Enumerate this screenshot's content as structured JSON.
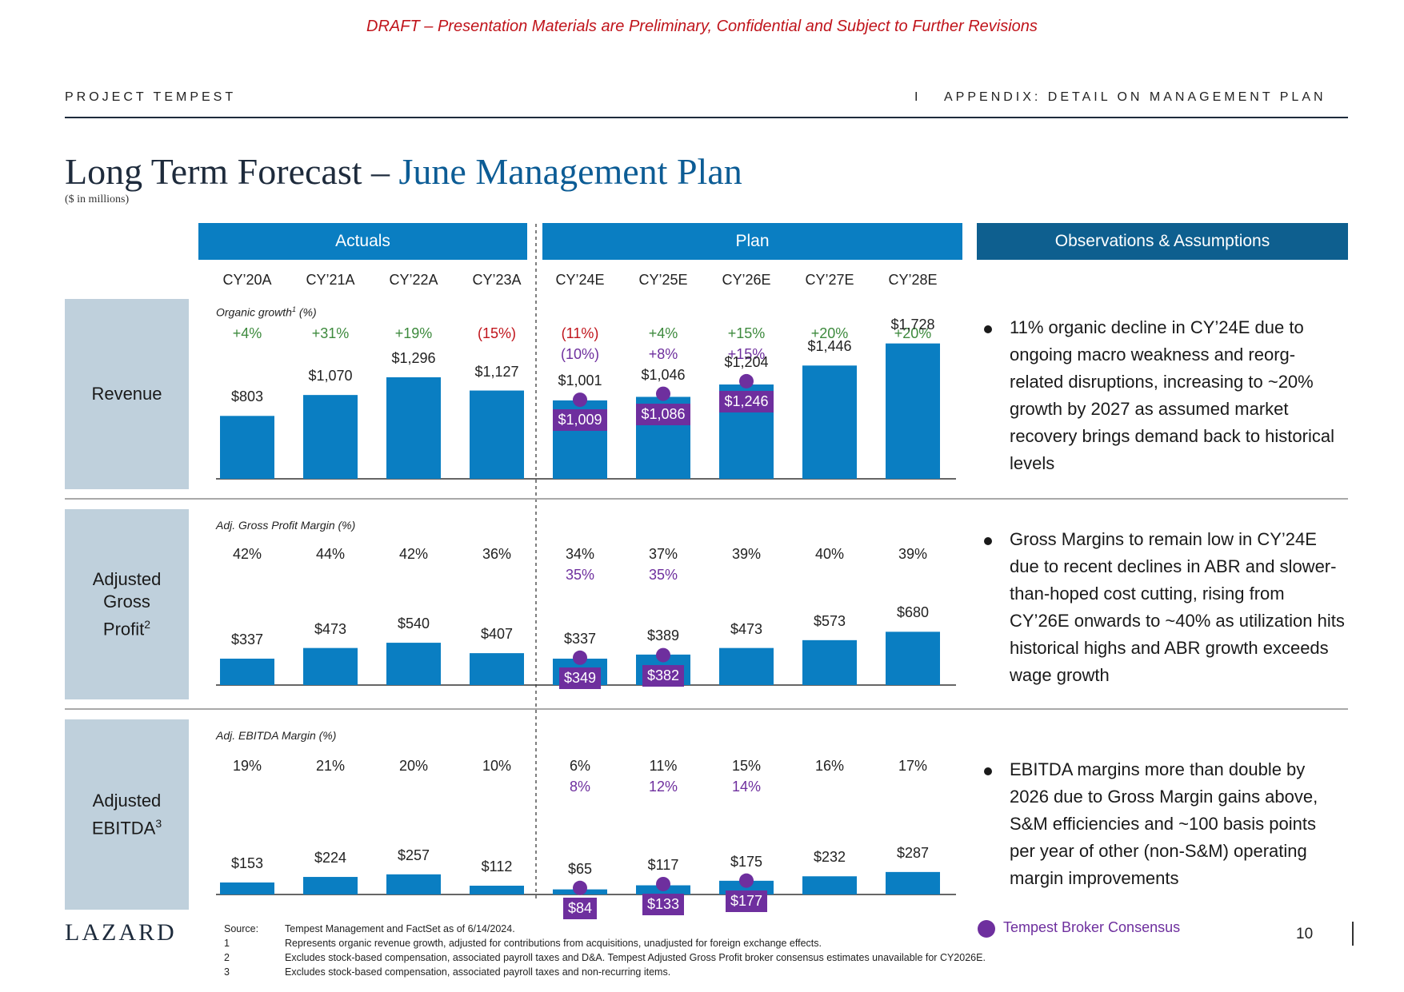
{
  "draft_notice": "DRAFT – Presentation Materials are Preliminary, Confidential and Subject to Further Revisions",
  "header": {
    "left": "PROJECT TEMPEST",
    "divider": "I",
    "right": "APPENDIX: DETAIL ON MANAGEMENT PLAN"
  },
  "title": {
    "main": "Long Term Forecast – ",
    "accent": "June Management Plan",
    "subtitle": "($ in millions)"
  },
  "bands": {
    "actuals": "Actuals",
    "plan": "Plan",
    "observations": "Observations & Assumptions"
  },
  "colors": {
    "bar": "#0a7ec2",
    "band_blue": "#0a7ec2",
    "band_dark": "#0e5f8f",
    "consensus": "#6e2f9e",
    "side_box": "#bfd0dc",
    "green": "#3d8a3d",
    "red": "#c0141b"
  },
  "chart_data": [
    {
      "type": "bar",
      "title": "Revenue",
      "categories": [
        "CY’20A",
        "CY’21A",
        "CY’22A",
        "CY’23A",
        "CY’24E",
        "CY’25E",
        "CY’26E",
        "CY’27E",
        "CY’28E"
      ],
      "values": [
        803,
        1070,
        1296,
        1127,
        1001,
        1046,
        1204,
        1446,
        1728
      ],
      "value_labels": [
        "$803",
        "$1,070",
        "$1,296",
        "$1,127",
        "$1,001",
        "$1,046",
        "$1,204",
        "$1,446",
        "$1,728"
      ],
      "metric_label": "Organic growth",
      "metric_sup": "1",
      "metric_suffix": " (%)",
      "metric": [
        "+4%",
        "+31%",
        "+19%",
        "(15%)",
        "(11%)",
        "+4%",
        "+15%",
        "+20%",
        "+20%"
      ],
      "metric_colors": [
        "green",
        "green",
        "green",
        "red",
        "red",
        "green",
        "green",
        "green",
        "green"
      ],
      "consensus_metric": [
        null,
        null,
        null,
        null,
        "(10%)",
        "+8%",
        "+15%",
        null,
        null
      ],
      "consensus_name": "Tempest Broker Consensus",
      "consensus": [
        null,
        null,
        null,
        null,
        1009,
        1086,
        1246,
        null,
        null
      ],
      "consensus_labels": [
        null,
        null,
        null,
        null,
        "$1,009",
        "$1,086",
        "$1,246",
        null,
        null
      ]
    },
    {
      "type": "bar",
      "title": "Adjusted Gross Profit",
      "categories": [
        "CY’20A",
        "CY’21A",
        "CY’22A",
        "CY’23A",
        "CY’24E",
        "CY’25E",
        "CY’26E",
        "CY’27E",
        "CY’28E"
      ],
      "values": [
        337,
        473,
        540,
        407,
        337,
        389,
        473,
        573,
        680
      ],
      "value_labels": [
        "$337",
        "$473",
        "$540",
        "$407",
        "$337",
        "$389",
        "$473",
        "$573",
        "$680"
      ],
      "metric_label": "Adj. Gross Profit Margin (%)",
      "metric": [
        "42%",
        "44%",
        "42%",
        "36%",
        "34%",
        "37%",
        "39%",
        "40%",
        "39%"
      ],
      "consensus_metric": [
        null,
        null,
        null,
        null,
        "35%",
        "35%",
        null,
        null,
        null
      ],
      "consensus_name": "Tempest Broker Consensus",
      "consensus": [
        null,
        null,
        null,
        null,
        349,
        382,
        null,
        null,
        null
      ],
      "consensus_labels": [
        null,
        null,
        null,
        null,
        "$349",
        "$382",
        null,
        null,
        null
      ]
    },
    {
      "type": "bar",
      "title": "Adjusted EBITDA",
      "categories": [
        "CY’20A",
        "CY’21A",
        "CY’22A",
        "CY’23A",
        "CY’24E",
        "CY’25E",
        "CY’26E",
        "CY’27E",
        "CY’28E"
      ],
      "values": [
        153,
        224,
        257,
        112,
        65,
        117,
        175,
        232,
        287
      ],
      "value_labels": [
        "$153",
        "$224",
        "$257",
        "$112",
        "$65",
        "$117",
        "$175",
        "$232",
        "$287"
      ],
      "metric_label": "Adj. EBITDA Margin (%)",
      "metric": [
        "19%",
        "21%",
        "20%",
        "10%",
        "6%",
        "11%",
        "15%",
        "16%",
        "17%"
      ],
      "consensus_metric": [
        null,
        null,
        null,
        null,
        "8%",
        "12%",
        "14%",
        null,
        null
      ],
      "consensus_name": "Tempest Broker Consensus",
      "consensus": [
        null,
        null,
        null,
        null,
        84,
        133,
        177,
        null,
        null
      ],
      "consensus_labels": [
        null,
        null,
        null,
        null,
        "$84",
        "$133",
        "$177",
        null,
        null
      ]
    }
  ],
  "side_labels": {
    "revenue": "Revenue",
    "gp_line1": "Adjusted",
    "gp_line2": "Gross",
    "gp_line3": "Profit",
    "gp_sup": "2",
    "ebitda_line1": "Adjusted",
    "ebitda_line2": "EBITDA",
    "ebitda_sup": "3"
  },
  "observations": [
    "11% organic decline in CY’24E due to ongoing macro weakness and reorg-related disruptions, increasing to ~20% growth by 2027 as assumed market recovery brings demand back to historical levels",
    "Gross Margins to remain low in CY’24E due to recent declines in ABR and slower-than-hoped cost cutting, rising from CY’26E onwards to ~40% as utilization hits historical highs and ABR growth exceeds wage growth",
    "EBITDA margins more than double by 2026 due to Gross Margin gains above, S&M efficiencies and ~100 basis points per year of other (non-S&M) operating margin improvements"
  ],
  "legend": {
    "consensus": "Tempest Broker Consensus"
  },
  "footnotes": {
    "source_key": "Source:",
    "source": "Tempest Management and FactSet as of 6/14/2024.",
    "fn1_key": "1",
    "fn1": "Represents organic revenue growth, adjusted for contributions from acquisitions, unadjusted for foreign exchange effects.",
    "fn2_key": "2",
    "fn2": "Excludes stock-based compensation, associated payroll taxes and D&A. Tempest Adjusted Gross Profit broker consensus estimates unavailable for CY2026E.",
    "fn3_key": "3",
    "fn3": "Excludes stock-based compensation, associated payroll taxes and non-recurring items."
  },
  "logo": "LAZARD",
  "page_number": "10"
}
